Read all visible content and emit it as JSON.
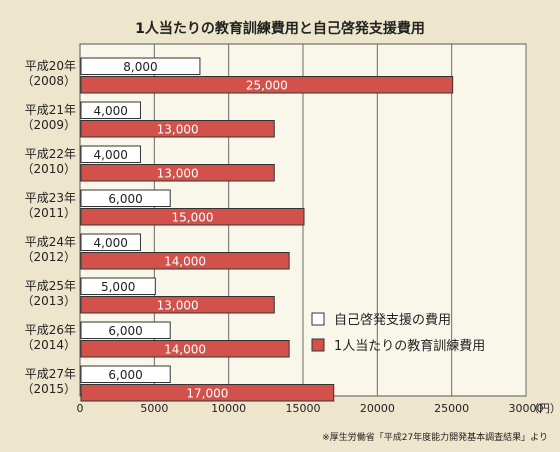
{
  "chart_data": {
    "type": "bar",
    "orientation": "horizontal",
    "title": "1人当たりの教育訓練費用と自己啓発支援費用",
    "categories": [
      {
        "year": "平成20年",
        "western": "（2008）"
      },
      {
        "year": "平成21年",
        "western": "（2009）"
      },
      {
        "year": "平成22年",
        "western": "（2010）"
      },
      {
        "year": "平成23年",
        "western": "（2011）"
      },
      {
        "year": "平成24年",
        "western": "（2012）"
      },
      {
        "year": "平成25年",
        "western": "（2013）"
      },
      {
        "year": "平成26年",
        "western": "（2014）"
      },
      {
        "year": "平成27年",
        "western": "（2015）"
      }
    ],
    "series": [
      {
        "name": "自己啓発支援の費用",
        "color": "#ffffff",
        "values": [
          8000,
          4000,
          4000,
          6000,
          4000,
          5000,
          6000,
          6000
        ],
        "labels": [
          "8,000",
          "4,000",
          "4,000",
          "6,000",
          "4,000",
          "5,000",
          "6,000",
          "6,000"
        ]
      },
      {
        "name": "1人当たりの教育訓練費用",
        "color": "#d2514a",
        "values": [
          25000,
          13000,
          13000,
          15000,
          14000,
          13000,
          14000,
          17000
        ],
        "labels": [
          "25,000",
          "13,000",
          "13,000",
          "15,000",
          "14,000",
          "13,000",
          "14,000",
          "17,000"
        ]
      }
    ],
    "x_ticks": [
      "0",
      "5000",
      "10000",
      "15000",
      "20000",
      "25000",
      "30000"
    ],
    "x_unit": "（円）",
    "xlim": [
      0,
      30000
    ],
    "grid": true,
    "legend_position": "lower-right",
    "source": "※厚生労働省「平成27年度能力開発基本調査結果」より"
  }
}
